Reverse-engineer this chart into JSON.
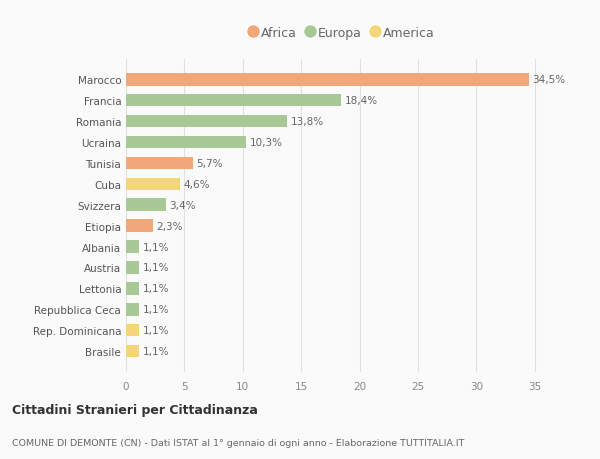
{
  "countries": [
    "Marocco",
    "Francia",
    "Romania",
    "Ucraina",
    "Tunisia",
    "Cuba",
    "Svizzera",
    "Etiopia",
    "Albania",
    "Austria",
    "Lettonia",
    "Repubblica Ceca",
    "Rep. Dominicana",
    "Brasile"
  ],
  "values": [
    34.5,
    18.4,
    13.8,
    10.3,
    5.7,
    4.6,
    3.4,
    2.3,
    1.1,
    1.1,
    1.1,
    1.1,
    1.1,
    1.1
  ],
  "labels": [
    "34,5%",
    "18,4%",
    "13,8%",
    "10,3%",
    "5,7%",
    "4,6%",
    "3,4%",
    "2,3%",
    "1,1%",
    "1,1%",
    "1,1%",
    "1,1%",
    "1,1%",
    "1,1%"
  ],
  "continents": [
    "Africa",
    "Europa",
    "Europa",
    "Europa",
    "Africa",
    "America",
    "Europa",
    "Africa",
    "Europa",
    "Europa",
    "Europa",
    "Europa",
    "America",
    "America"
  ],
  "colors": {
    "Africa": "#F0A87A",
    "Europa": "#A8C895",
    "America": "#F5D57A"
  },
  "legend_order": [
    "Africa",
    "Europa",
    "America"
  ],
  "xlim": [
    0,
    37
  ],
  "xticks": [
    0,
    5,
    10,
    15,
    20,
    25,
    30,
    35
  ],
  "title_main": "Cittadini Stranieri per Cittadinanza",
  "title_sub": "COMUNE DI DEMONTE (CN) - Dati ISTAT al 1° gennaio di ogni anno - Elaborazione TUTTITALIA.IT",
  "bg_color": "#FAFAFA",
  "bar_height": 0.6,
  "grid_color": "#E0E0E0",
  "label_fontsize": 7.5,
  "tick_fontsize": 7.5,
  "legend_fontsize": 9.0
}
